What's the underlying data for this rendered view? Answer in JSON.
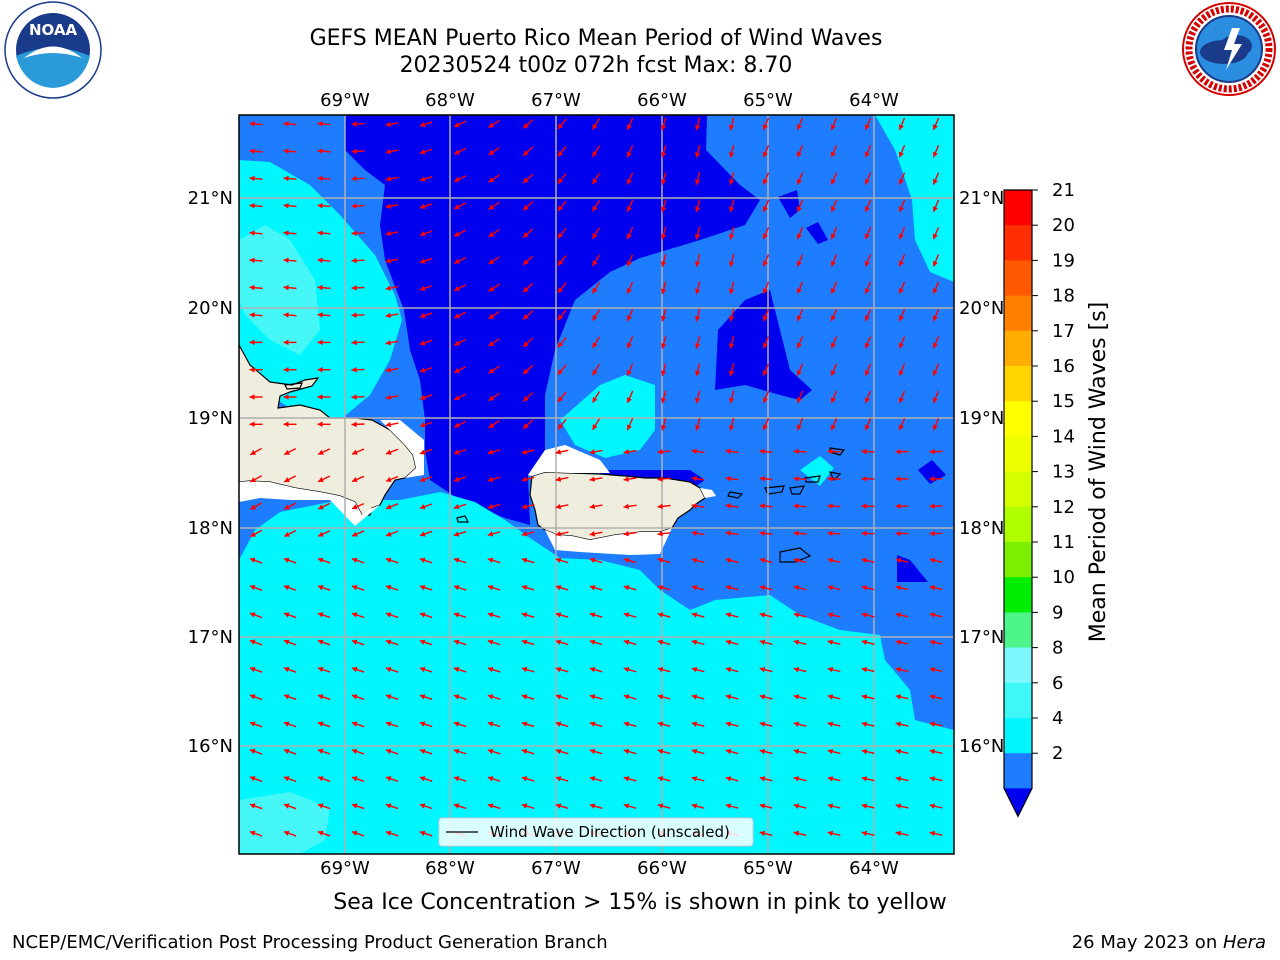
{
  "header": {
    "title_line1": "GEFS MEAN Puerto Rico Mean Period of Wind Waves",
    "title_line2": "20230524 t00z 072h fcst   Max: 8.70"
  },
  "logos": {
    "noaa_text": "NOAA",
    "noaa_ring_text": "NATIONAL OCEANIC AND ATMOSPHERIC ADMINISTRATION · U.S. DEPARTMENT OF COMMERCE",
    "nws_ring_text": "NATIONAL WEATHER SERVICE"
  },
  "map": {
    "lon_labels": [
      "69°W",
      "68°W",
      "67°W",
      "66°W",
      "65°W",
      "64°W"
    ],
    "lat_labels": [
      "21°N",
      "20°N",
      "19°N",
      "18°N",
      "17°N",
      "16°N"
    ],
    "legend_label": "Wind Wave Direction (unscaled)",
    "colors": {
      "lt2": "#0000ee",
      "2-4": "#1e7cff",
      "4-6": "#00f7ff",
      "6-8": "#45f7f7",
      "land": "#efedde",
      "arrow": "#ff0000"
    }
  },
  "colorbar": {
    "label": "Mean Period of Wind Waves [s]",
    "ticks": [
      "21",
      "20",
      "19",
      "18",
      "17",
      "16",
      "15",
      "14",
      "13",
      "12",
      "11",
      "10",
      "9",
      "8",
      "6",
      "4",
      "2"
    ],
    "colors": [
      "#ff0000",
      "#ff2e00",
      "#ff5900",
      "#ff8000",
      "#ffad00",
      "#ffd400",
      "#ffff00",
      "#eeff00",
      "#d4ff00",
      "#b0ff00",
      "#7cf000",
      "#00ee00",
      "#4df58a",
      "#7ff7ff",
      "#3ef7f7",
      "#00f5ff",
      "#1e7cff"
    ],
    "under_color": "#0000ee"
  },
  "footer": {
    "sea_ice_note": "Sea Ice Concentration > 15% is shown in pink to yellow",
    "left": "NCEP/EMC/Verification Post Processing Product Generation Branch",
    "right_date": "26 May 2023 on ",
    "right_host": "Hera"
  }
}
